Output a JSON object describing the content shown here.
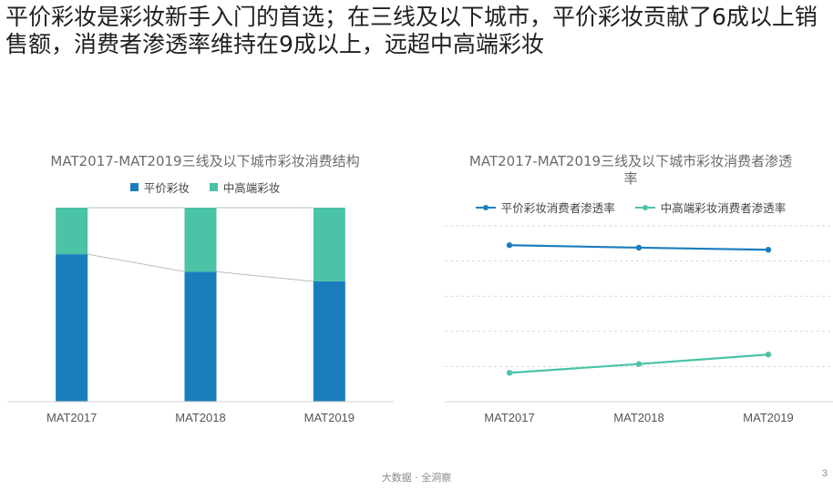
{
  "headline": "平价彩妆是彩妆新手入门的首选；在三线及以下城市，平价彩妆贡献了6成以上销售额，消费者渗透率维持在9成以上，远超中高端彩妆",
  "footer": "大数据 · 全洞察",
  "page_number": "3",
  "colors": {
    "blue": "#1a7ebd",
    "green": "#4bc3a7",
    "axis": "#d0d0d0",
    "grid": "#d9d9d9",
    "connector": "#bdbdbd"
  },
  "chart_data": [
    {
      "type": "bar",
      "stacked": "percent",
      "title": "MAT2017-MAT2019三线及以下城市彩妆消费结构",
      "categories": [
        "MAT2017",
        "MAT2018",
        "MAT2019"
      ],
      "series": [
        {
          "name": "平价彩妆",
          "values": [
            76,
            67,
            62
          ]
        },
        {
          "name": "中高端彩妆",
          "values": [
            24,
            33,
            38
          ]
        }
      ],
      "ylim": [
        0,
        100
      ],
      "legend": "top",
      "grid": false,
      "series_lines": true
    },
    {
      "type": "line",
      "title": "MAT2017-MAT2019三线及以下城市彩妆消费者渗透率",
      "categories": [
        "MAT2017",
        "MAT2018",
        "MAT2019"
      ],
      "series": [
        {
          "name": "平价彩妆消费者渗透率",
          "values": [
            94.5,
            93.8,
            93.2
          ]
        },
        {
          "name": "中高端彩妆消费者渗透率",
          "values": [
            58.2,
            60.7,
            63.4
          ]
        }
      ],
      "ylim": [
        50,
        100
      ],
      "legend": "top",
      "grid": true,
      "y_tick_labels": false
    }
  ]
}
